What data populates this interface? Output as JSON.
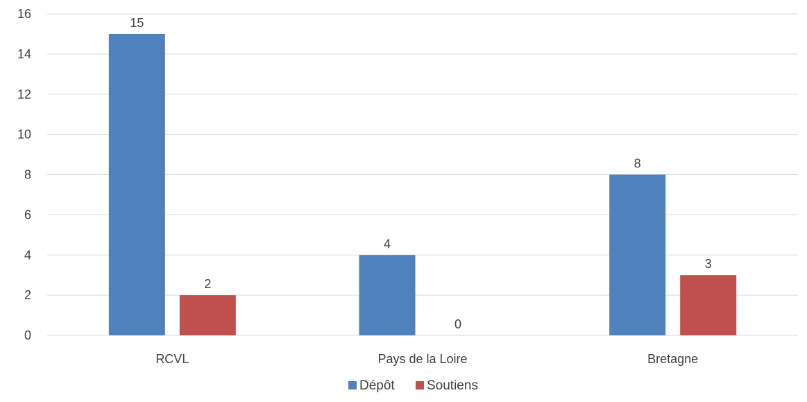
{
  "chart_data": {
    "type": "bar",
    "categories": [
      "RCVL",
      "Pays de la Loire",
      "Bretagne"
    ],
    "series": [
      {
        "name": "Dépôt",
        "values": [
          15,
          4,
          8
        ],
        "color": "#4f81bd"
      },
      {
        "name": "Soutiens",
        "values": [
          2,
          0,
          3
        ],
        "color": "#c0504d"
      }
    ],
    "ylim": [
      0,
      16
    ],
    "yticks": [
      0,
      2,
      4,
      6,
      8,
      10,
      12,
      14,
      16
    ],
    "grid": true,
    "legend_position": "bottom",
    "data_labels": true
  }
}
